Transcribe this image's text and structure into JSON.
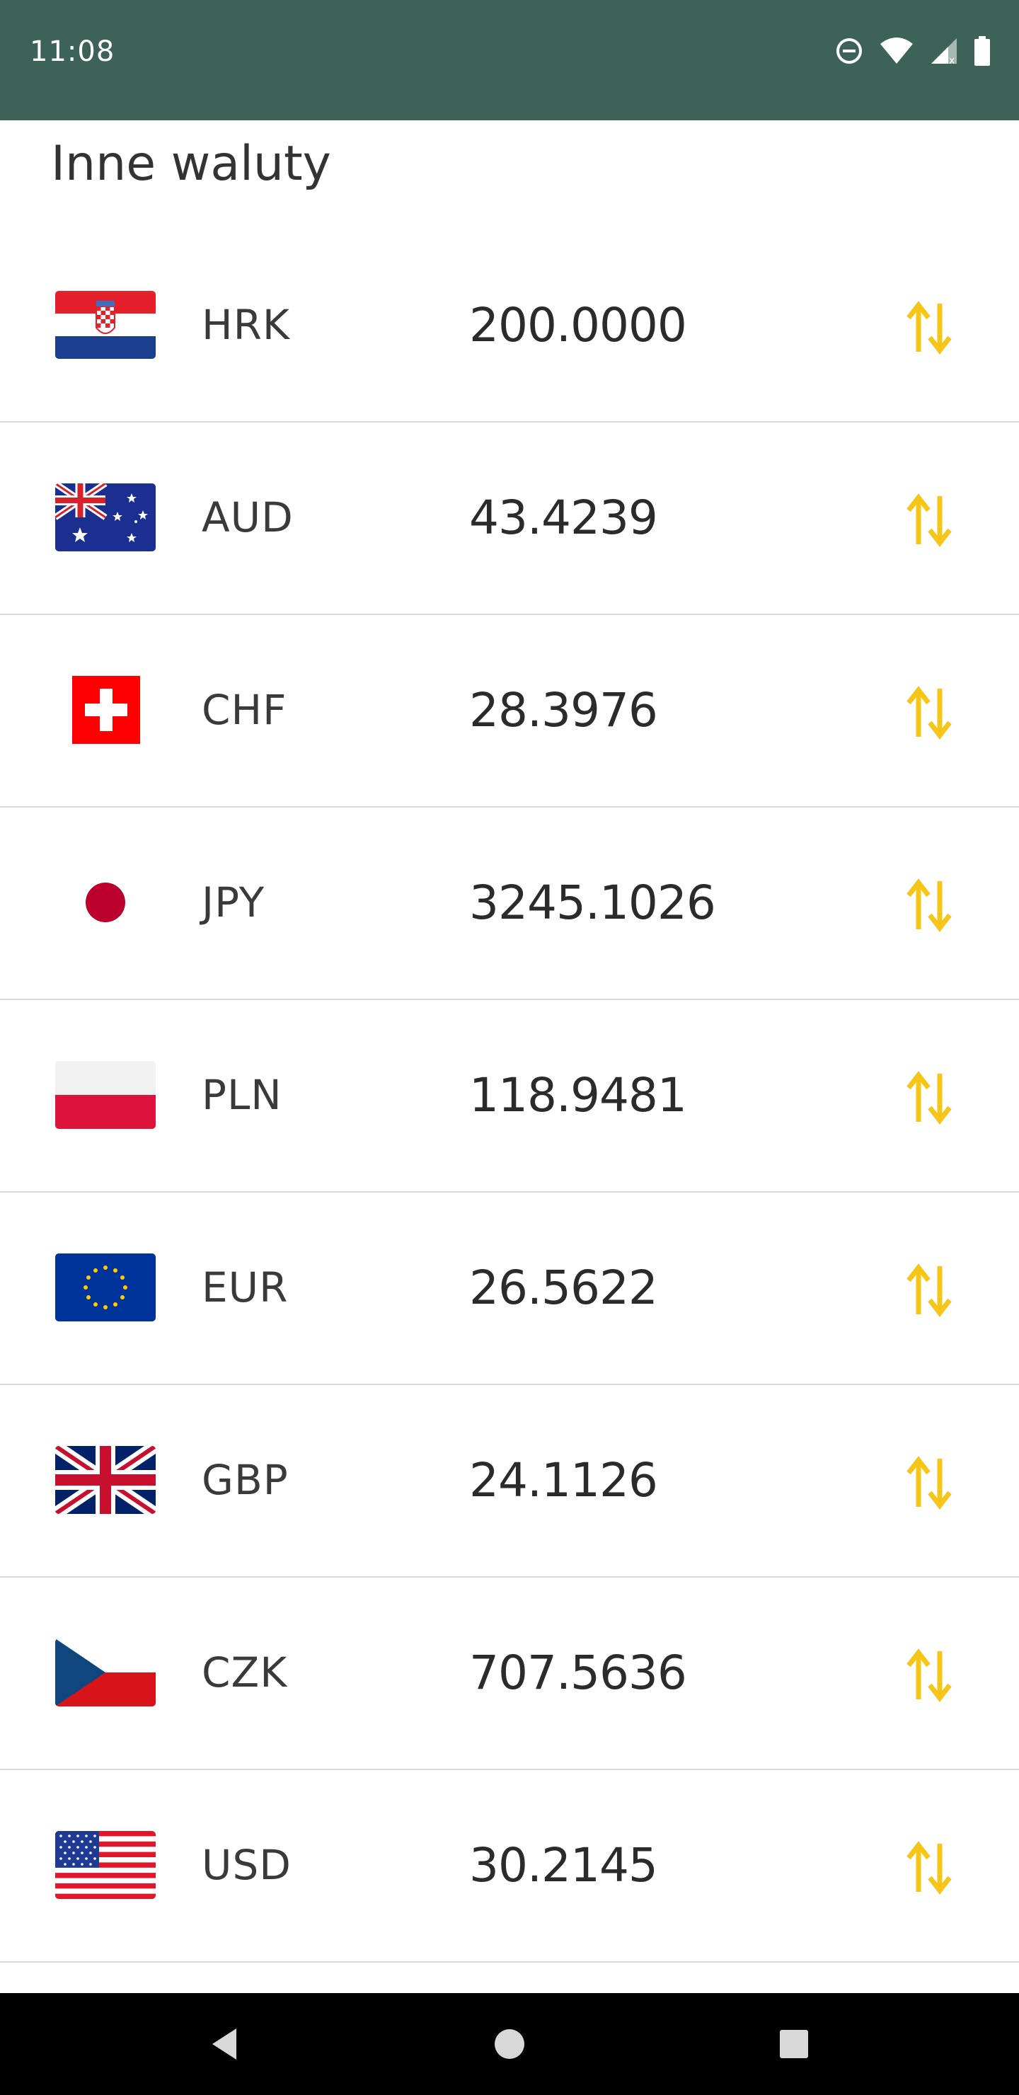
{
  "status_bar": {
    "time": "11:08",
    "icons": [
      "do-not-disturb-icon",
      "wifi-icon",
      "signal-icon",
      "battery-icon"
    ]
  },
  "section": {
    "title": "Inne waluty"
  },
  "currencies": [
    {
      "code": "HRK",
      "value": "200.0000",
      "flag": "croatia"
    },
    {
      "code": "AUD",
      "value": "43.4239",
      "flag": "australia"
    },
    {
      "code": "CHF",
      "value": "28.3976",
      "flag": "switzerland"
    },
    {
      "code": "JPY",
      "value": "3245.1026",
      "flag": "japan"
    },
    {
      "code": "PLN",
      "value": "118.9481",
      "flag": "poland"
    },
    {
      "code": "EUR",
      "value": "26.5622",
      "flag": "eu"
    },
    {
      "code": "GBP",
      "value": "24.1126",
      "flag": "uk"
    },
    {
      "code": "CZK",
      "value": "707.5636",
      "flag": "czech"
    },
    {
      "code": "USD",
      "value": "30.2145",
      "flag": "usa"
    }
  ],
  "colors": {
    "status_bar": "#3d6358",
    "swap_icon": "#f5c518",
    "divider": "#d9d9d9"
  },
  "nav_bar": {
    "buttons": [
      "back-icon",
      "home-icon",
      "recents-icon"
    ]
  }
}
